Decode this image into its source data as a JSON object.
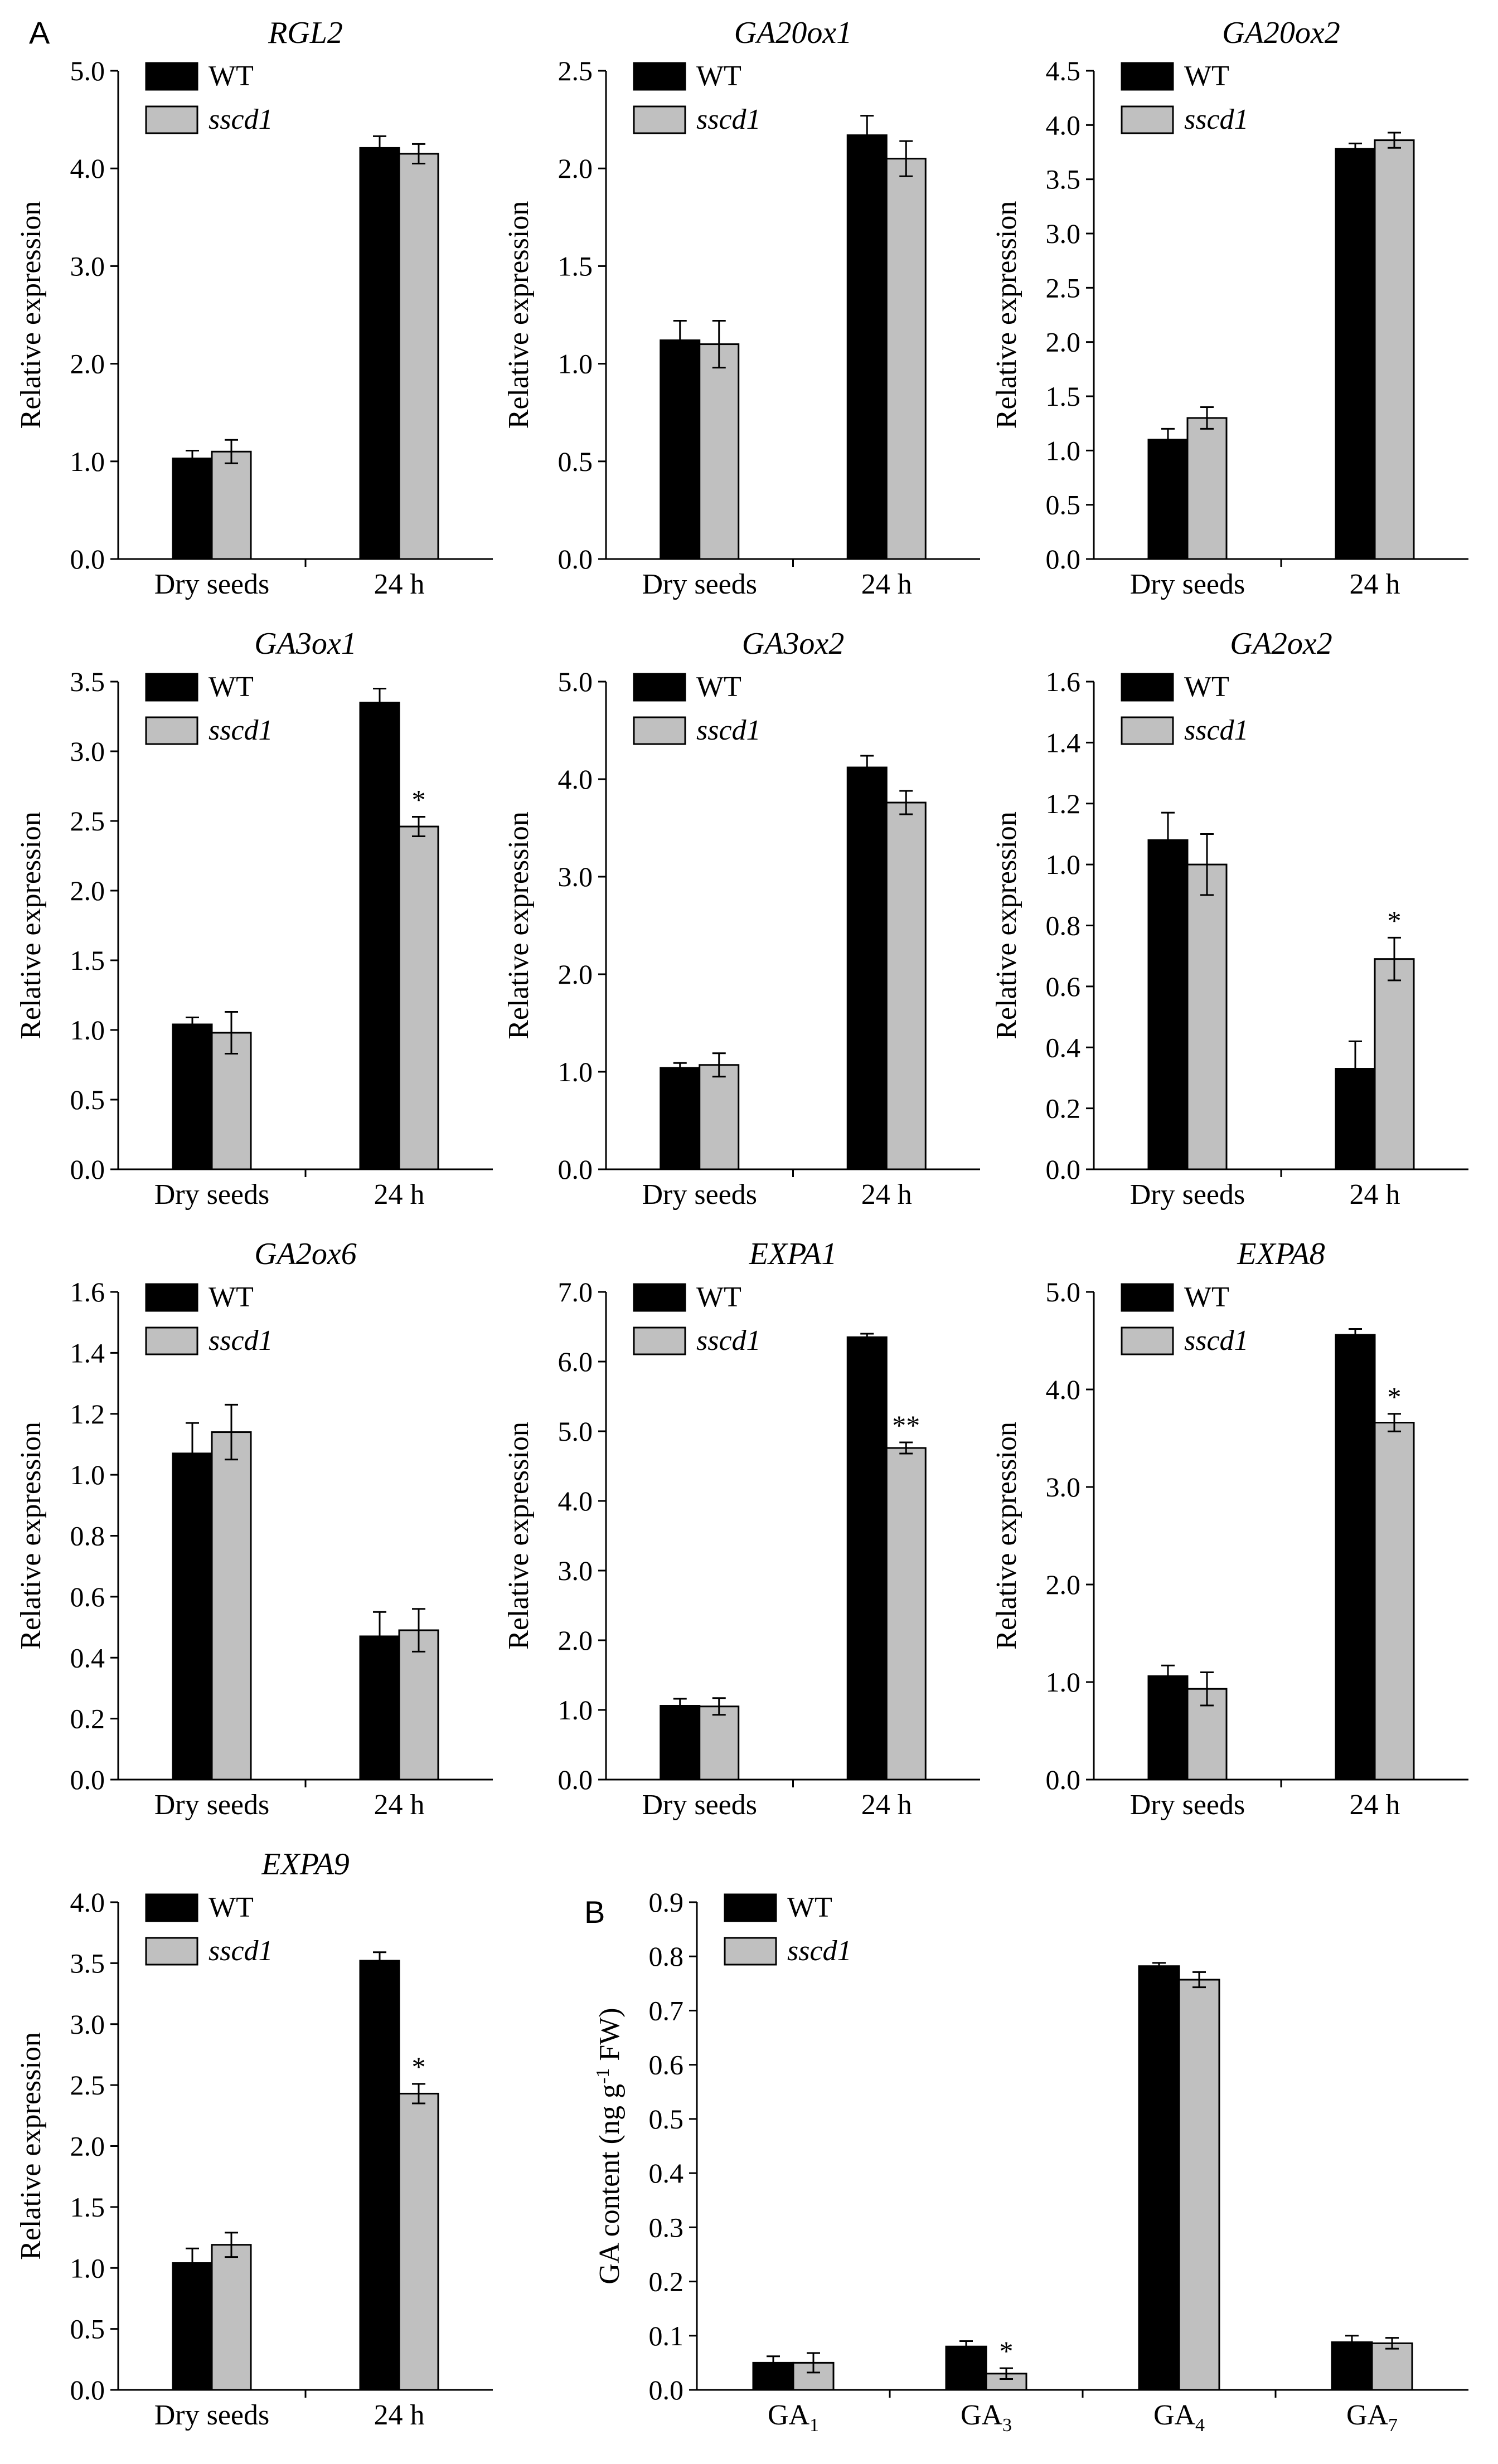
{
  "panel_labels": {
    "A": "A",
    "B": "B"
  },
  "colors": {
    "wt": "#000000",
    "mutant": "#c0c0c0",
    "axis": "#000000"
  },
  "chart_data": [
    {
      "type": "bar",
      "title": "RGL2",
      "title_italic": true,
      "ylabel": "Relative expression",
      "categories": [
        "Dry seeds",
        "24 h"
      ],
      "ylim": [
        0,
        5.0
      ],
      "ticks": [
        0,
        1,
        2,
        3,
        4,
        5
      ],
      "tick_labels": [
        "0.0",
        "1.0",
        "2.0",
        "3.0",
        "4.0",
        "5.0"
      ],
      "legend": [
        "WT",
        "sscd1"
      ],
      "series": [
        {
          "name": "WT",
          "values": [
            1.03,
            4.21
          ],
          "errors": [
            0.08,
            0.12
          ]
        },
        {
          "name": "sscd1",
          "values": [
            1.1,
            4.15
          ],
          "errors": [
            0.12,
            0.1
          ]
        }
      ],
      "annotations": [
        "",
        ""
      ]
    },
    {
      "type": "bar",
      "title": "GA20ox1",
      "title_italic": true,
      "ylabel": "Relative expression",
      "categories": [
        "Dry seeds",
        "24 h"
      ],
      "ylim": [
        0,
        2.5
      ],
      "ticks": [
        0,
        0.5,
        1,
        1.5,
        2,
        2.5
      ],
      "tick_labels": [
        "0.0",
        "0.5",
        "1.0",
        "1.5",
        "2.0",
        "2.5"
      ],
      "legend": [
        "WT",
        "sscd1"
      ],
      "series": [
        {
          "name": "WT",
          "values": [
            1.12,
            2.17
          ],
          "errors": [
            0.1,
            0.1
          ]
        },
        {
          "name": "sscd1",
          "values": [
            1.1,
            2.05
          ],
          "errors": [
            0.12,
            0.09
          ]
        }
      ],
      "annotations": [
        "",
        ""
      ]
    },
    {
      "type": "bar",
      "title": "GA20ox2",
      "title_italic": true,
      "ylabel": "Relative expression",
      "categories": [
        "Dry seeds",
        "24 h"
      ],
      "ylim": [
        0,
        4.5
      ],
      "ticks": [
        0,
        0.5,
        1,
        1.5,
        2,
        2.5,
        3,
        3.5,
        4,
        4.5
      ],
      "tick_labels": [
        "0.0",
        "0.5",
        "1.0",
        "1.5",
        "2.0",
        "2.5",
        "3.0",
        "3.5",
        "4.0",
        "4.5"
      ],
      "legend": [
        "WT",
        "sscd1"
      ],
      "series": [
        {
          "name": "WT",
          "values": [
            1.1,
            3.78
          ],
          "errors": [
            0.1,
            0.05
          ]
        },
        {
          "name": "sscd1",
          "values": [
            1.3,
            3.86
          ],
          "errors": [
            0.1,
            0.07
          ]
        }
      ],
      "annotations": [
        "",
        ""
      ]
    },
    {
      "type": "bar",
      "title": "GA3ox1",
      "title_italic": true,
      "ylabel": "Relative expression",
      "categories": [
        "Dry seeds",
        "24 h"
      ],
      "ylim": [
        0,
        3.5
      ],
      "ticks": [
        0,
        0.5,
        1,
        1.5,
        2,
        2.5,
        3,
        3.5
      ],
      "tick_labels": [
        "0.0",
        "0.5",
        "1.0",
        "1.5",
        "2.0",
        "2.5",
        "3.0",
        "3.5"
      ],
      "legend": [
        "WT",
        "sscd1"
      ],
      "series": [
        {
          "name": "WT",
          "values": [
            1.04,
            3.35
          ],
          "errors": [
            0.05,
            0.1
          ]
        },
        {
          "name": "sscd1",
          "values": [
            0.98,
            2.46
          ],
          "errors": [
            0.15,
            0.07
          ]
        }
      ],
      "annotations": [
        "",
        "*"
      ]
    },
    {
      "type": "bar",
      "title": "GA3ox2",
      "title_italic": true,
      "ylabel": "Relative expression",
      "categories": [
        "Dry seeds",
        "24 h"
      ],
      "ylim": [
        0,
        5.0
      ],
      "ticks": [
        0,
        1,
        2,
        3,
        4,
        5
      ],
      "tick_labels": [
        "0.0",
        "1.0",
        "2.0",
        "3.0",
        "4.0",
        "5.0"
      ],
      "legend": [
        "WT",
        "sscd1"
      ],
      "series": [
        {
          "name": "WT",
          "values": [
            1.04,
            4.12
          ],
          "errors": [
            0.05,
            0.12
          ]
        },
        {
          "name": "sscd1",
          "values": [
            1.07,
            3.76
          ],
          "errors": [
            0.12,
            0.12
          ]
        }
      ],
      "annotations": [
        "",
        ""
      ]
    },
    {
      "type": "bar",
      "title": "GA2ox2",
      "title_italic": true,
      "ylabel": "Relative expression",
      "categories": [
        "Dry seeds",
        "24 h"
      ],
      "ylim": [
        0,
        1.6
      ],
      "ticks": [
        0,
        0.2,
        0.4,
        0.6,
        0.8,
        1,
        1.2,
        1.4,
        1.6
      ],
      "tick_labels": [
        "0.0",
        "0.2",
        "0.4",
        "0.6",
        "0.8",
        "1.0",
        "1.2",
        "1.4",
        "1.6"
      ],
      "legend": [
        "WT",
        "sscd1"
      ],
      "series": [
        {
          "name": "WT",
          "values": [
            1.08,
            0.33
          ],
          "errors": [
            0.09,
            0.09
          ]
        },
        {
          "name": "sscd1",
          "values": [
            1.0,
            0.69
          ],
          "errors": [
            0.1,
            0.07
          ]
        }
      ],
      "annotations": [
        "",
        "*"
      ]
    },
    {
      "type": "bar",
      "title": "GA2ox6",
      "title_italic": true,
      "ylabel": "Relative expression",
      "categories": [
        "Dry seeds",
        "24 h"
      ],
      "ylim": [
        0,
        1.6
      ],
      "ticks": [
        0,
        0.2,
        0.4,
        0.6,
        0.8,
        1,
        1.2,
        1.4,
        1.6
      ],
      "tick_labels": [
        "0.0",
        "0.2",
        "0.4",
        "0.6",
        "0.8",
        "1.0",
        "1.2",
        "1.4",
        "1.6"
      ],
      "legend": [
        "WT",
        "sscd1"
      ],
      "series": [
        {
          "name": "WT",
          "values": [
            1.07,
            0.47
          ],
          "errors": [
            0.1,
            0.08
          ]
        },
        {
          "name": "sscd1",
          "values": [
            1.14,
            0.49
          ],
          "errors": [
            0.09,
            0.07
          ]
        }
      ],
      "annotations": [
        "",
        ""
      ]
    },
    {
      "type": "bar",
      "title": "EXPA1",
      "title_italic": true,
      "ylabel": "Relative expression",
      "categories": [
        "Dry seeds",
        "24 h"
      ],
      "ylim": [
        0,
        7.0
      ],
      "ticks": [
        0,
        1,
        2,
        3,
        4,
        5,
        6,
        7
      ],
      "tick_labels": [
        "0.0",
        "1.0",
        "2.0",
        "3.0",
        "4.0",
        "5.0",
        "6.0",
        "7.0"
      ],
      "legend": [
        "WT",
        "sscd1"
      ],
      "series": [
        {
          "name": "WT",
          "values": [
            1.06,
            6.35
          ],
          "errors": [
            0.1,
            0.05
          ]
        },
        {
          "name": "sscd1",
          "values": [
            1.05,
            4.76
          ],
          "errors": [
            0.12,
            0.08
          ]
        }
      ],
      "annotations": [
        "",
        "**"
      ]
    },
    {
      "type": "bar",
      "title": "EXPA8",
      "title_italic": true,
      "ylabel": "Relative expression",
      "categories": [
        "Dry seeds",
        "24 h"
      ],
      "ylim": [
        0,
        5.0
      ],
      "ticks": [
        0,
        1,
        2,
        3,
        4,
        5
      ],
      "tick_labels": [
        "0.0",
        "1.0",
        "2.0",
        "3.0",
        "4.0",
        "5.0"
      ],
      "legend": [
        "WT",
        "sscd1"
      ],
      "series": [
        {
          "name": "WT",
          "values": [
            1.06,
            4.56
          ],
          "errors": [
            0.11,
            0.06
          ]
        },
        {
          "name": "sscd1",
          "values": [
            0.93,
            3.66
          ],
          "errors": [
            0.17,
            0.09
          ]
        }
      ],
      "annotations": [
        "",
        "*"
      ]
    },
    {
      "type": "bar",
      "title": "EXPA9",
      "title_italic": true,
      "ylabel": "Relative expression",
      "categories": [
        "Dry seeds",
        "24 h"
      ],
      "ylim": [
        0,
        4.0
      ],
      "ticks": [
        0,
        0.5,
        1,
        1.5,
        2,
        2.5,
        3,
        3.5,
        4
      ],
      "tick_labels": [
        "0.0",
        "0.5",
        "1.0",
        "1.5",
        "2.0",
        "2.5",
        "3.0",
        "3.5",
        "4.0"
      ],
      "legend": [
        "WT",
        "sscd1"
      ],
      "series": [
        {
          "name": "WT",
          "values": [
            1.04,
            3.52
          ],
          "errors": [
            0.12,
            0.07
          ]
        },
        {
          "name": "sscd1",
          "values": [
            1.19,
            2.43
          ],
          "errors": [
            0.1,
            0.08
          ]
        }
      ],
      "annotations": [
        "",
        "*"
      ]
    },
    {
      "type": "bar",
      "title": "",
      "title_italic": false,
      "ylabel": "GA content (ng g-1 FW)",
      "ylabel_parts": [
        "GA content (ng g",
        "-1",
        " FW)"
      ],
      "categories": [
        "GA1",
        "GA3",
        "GA4",
        "GA7"
      ],
      "category_parts": [
        [
          "GA",
          "1"
        ],
        [
          "GA",
          "3"
        ],
        [
          "GA",
          "4"
        ],
        [
          "GA",
          "7"
        ]
      ],
      "ylim": [
        0,
        0.9
      ],
      "ticks": [
        0,
        0.1,
        0.2,
        0.3,
        0.4,
        0.5,
        0.6,
        0.7,
        0.8,
        0.9
      ],
      "tick_labels": [
        "0.0",
        "0.1",
        "0.2",
        "0.3",
        "0.4",
        "0.5",
        "0.6",
        "0.7",
        "0.8",
        "0.9"
      ],
      "legend": [
        "WT",
        "sscd1"
      ],
      "series": [
        {
          "name": "WT",
          "values": [
            0.05,
            0.08,
            0.782,
            0.088
          ],
          "errors": [
            0.012,
            0.01,
            0.006,
            0.012
          ]
        },
        {
          "name": "sscd1",
          "values": [
            0.05,
            0.03,
            0.757,
            0.086
          ],
          "errors": [
            0.018,
            0.01,
            0.014,
            0.01
          ]
        }
      ],
      "annotations": [
        "",
        "*",
        "",
        ""
      ]
    }
  ]
}
